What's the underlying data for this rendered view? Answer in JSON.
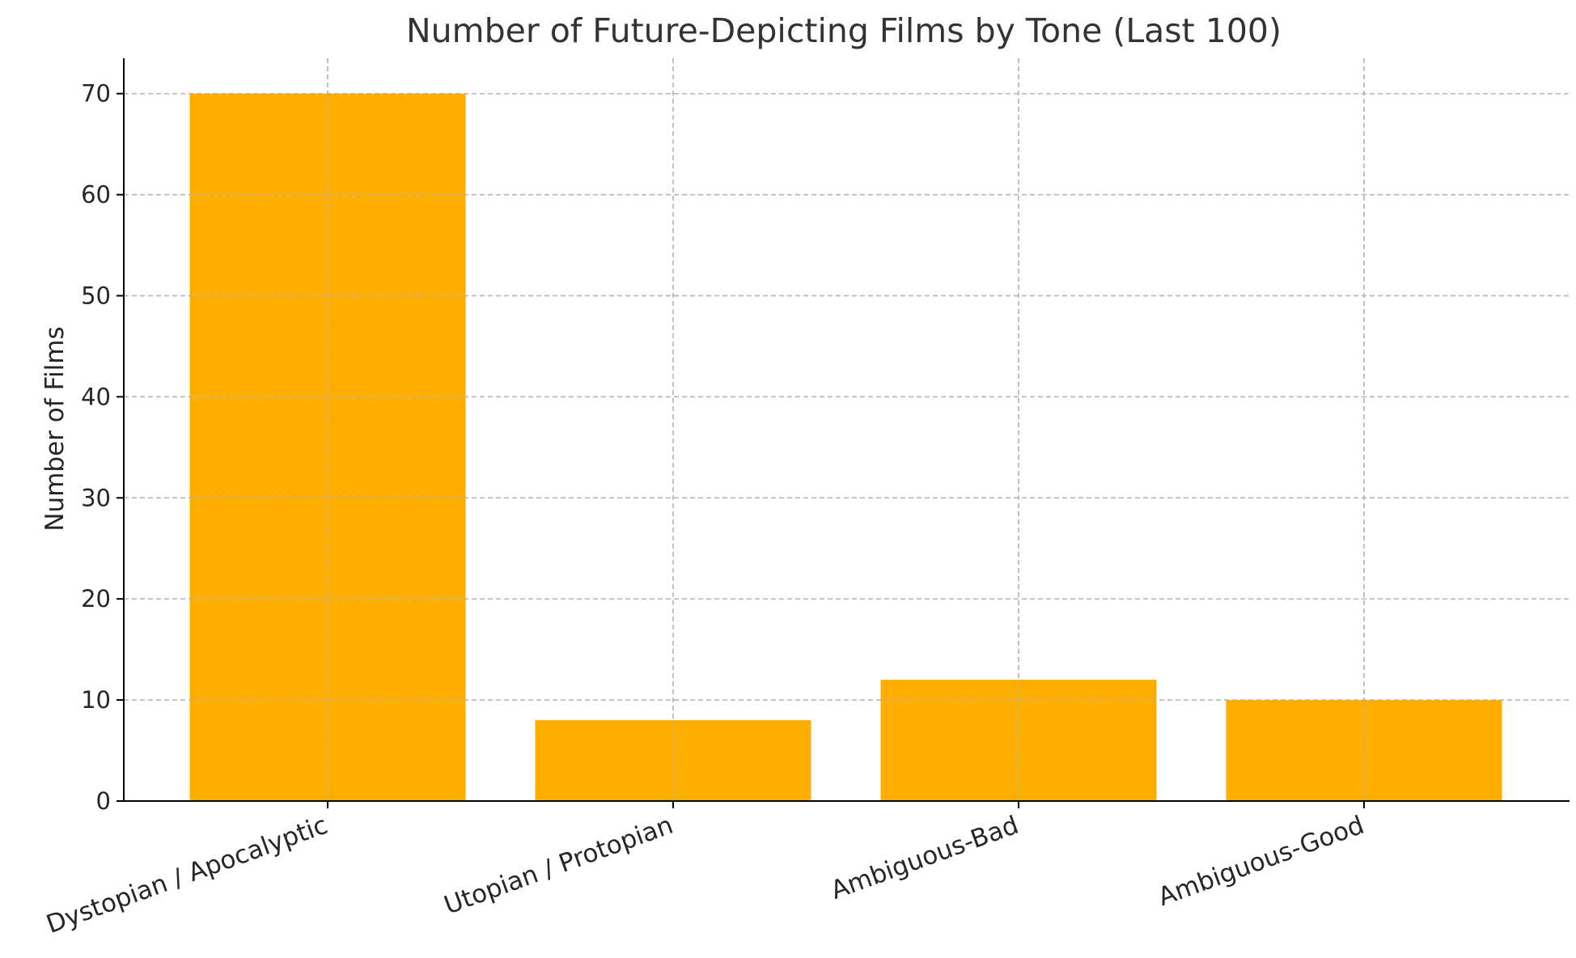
{
  "chart_data": {
    "type": "bar",
    "title": "Number of Future-Depicting Films by Tone (Last 100)",
    "xlabel": "",
    "ylabel": "Number of Films",
    "categories": [
      "Dystopian / Apocalyptic",
      "Utopian / Protopian",
      "Ambiguous-Bad",
      "Ambiguous-Good"
    ],
    "values": [
      70,
      8,
      12,
      10
    ],
    "ylim": [
      0,
      73.5
    ],
    "yticks": [
      "0",
      "10",
      "20",
      "30",
      "40",
      "50",
      "60",
      "70"
    ],
    "bar_color": "#FFAE00",
    "grid": true,
    "xtick_rotation": "rotated ~20° counter-clockwise"
  }
}
